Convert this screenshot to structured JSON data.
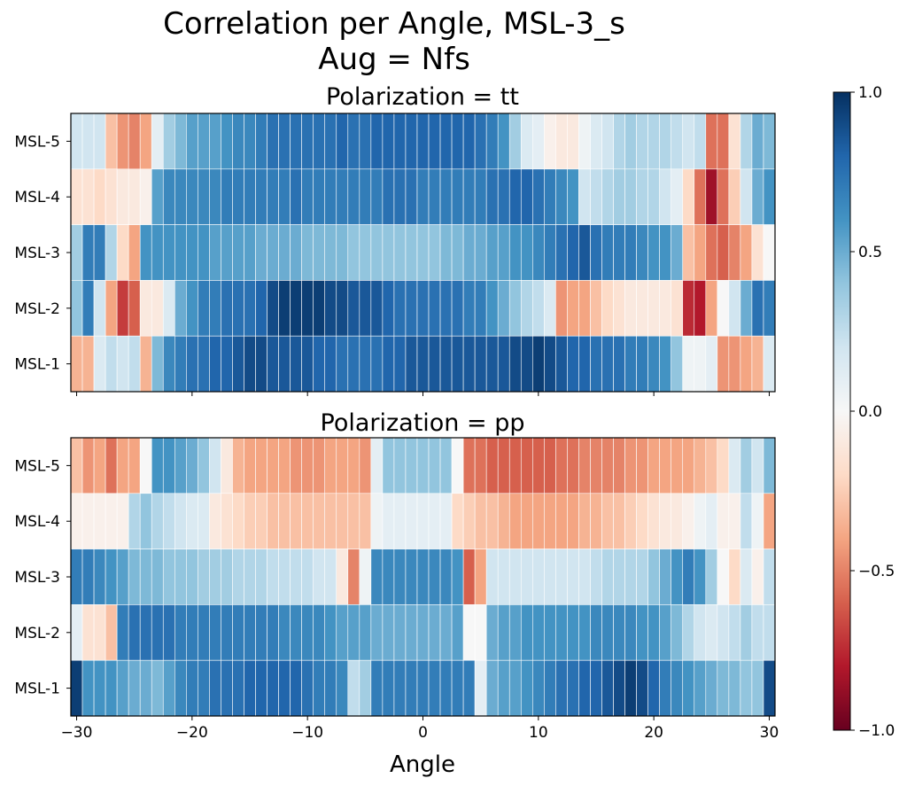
{
  "chart_data": {
    "type": "heatmap",
    "title": "Correlation per Angle, MSL-3_s",
    "subtitle": "Aug = Nfs",
    "xlabel": "Angle",
    "x": [
      -30,
      -29,
      -28,
      -27,
      -26,
      -25,
      -24,
      -23,
      -22,
      -21,
      -20,
      -19,
      -18,
      -17,
      -16,
      -15,
      -14,
      -13,
      -12,
      -11,
      -10,
      -9,
      -8,
      -7,
      -6,
      -5,
      -4,
      -3,
      -2,
      -1,
      0,
      1,
      2,
      3,
      4,
      5,
      6,
      7,
      8,
      9,
      10,
      11,
      12,
      13,
      14,
      15,
      16,
      17,
      18,
      19,
      20,
      21,
      22,
      23,
      24,
      25,
      26,
      27,
      28,
      29,
      30
    ],
    "xlim": [
      -30.5,
      30.5
    ],
    "xticks": [
      -30,
      -20,
      -10,
      0,
      10,
      20,
      30
    ],
    "xtick_labels": [
      "−30",
      "−20",
      "−10",
      "0",
      "10",
      "20",
      "30"
    ],
    "colorscale": "RdBu",
    "vmin": -1.0,
    "vmax": 1.0,
    "colorbar_ticks": [
      1.0,
      0.5,
      0.0,
      -0.5,
      -1.0
    ],
    "colorbar_tick_labels": [
      "1.0",
      "0.5",
      "0.0",
      "−0.5",
      "−1.0"
    ],
    "grid": false,
    "panels": [
      {
        "title": "Polarization = tt",
        "rows": [
          "MSL-5",
          "MSL-4",
          "MSL-3",
          "MSL-2",
          "MSL-1"
        ],
        "values": [
          [
            0.2,
            0.2,
            0.2,
            -0.3,
            -0.45,
            -0.5,
            -0.4,
            0.1,
            0.35,
            0.45,
            0.55,
            0.55,
            0.55,
            0.6,
            0.65,
            0.65,
            0.7,
            0.75,
            0.75,
            0.75,
            0.75,
            0.75,
            0.75,
            0.8,
            0.75,
            0.75,
            0.8,
            0.8,
            0.8,
            0.8,
            0.8,
            0.8,
            0.8,
            0.8,
            0.8,
            0.75,
            0.7,
            0.6,
            0.35,
            0.15,
            0.1,
            -0.05,
            -0.1,
            -0.1,
            0.05,
            0.15,
            0.2,
            0.3,
            0.35,
            0.3,
            0.3,
            0.3,
            0.25,
            0.2,
            0.25,
            -0.55,
            -0.55,
            -0.15,
            0.3,
            0.5,
            0.45
          ],
          [
            -0.15,
            -0.15,
            -0.2,
            -0.15,
            -0.1,
            -0.1,
            -0.05,
            0.55,
            0.65,
            0.65,
            0.65,
            0.65,
            0.65,
            0.7,
            0.7,
            0.7,
            0.7,
            0.7,
            0.7,
            0.75,
            0.7,
            0.7,
            0.7,
            0.7,
            0.7,
            0.7,
            0.7,
            0.75,
            0.75,
            0.75,
            0.7,
            0.7,
            0.7,
            0.7,
            0.7,
            0.7,
            0.75,
            0.75,
            0.8,
            0.8,
            0.75,
            0.7,
            0.65,
            0.6,
            0.2,
            0.25,
            0.3,
            0.35,
            0.35,
            0.3,
            0.3,
            0.2,
            0.1,
            -0.2,
            -0.55,
            -0.85,
            -0.55,
            -0.25,
            0.2,
            0.5,
            0.6
          ],
          [
            0.35,
            0.7,
            0.7,
            0.3,
            -0.2,
            -0.4,
            0.6,
            0.6,
            0.6,
            0.6,
            0.6,
            0.6,
            0.55,
            0.55,
            0.55,
            0.55,
            0.5,
            0.5,
            0.5,
            0.5,
            0.45,
            0.45,
            0.45,
            0.45,
            0.4,
            0.4,
            0.4,
            0.4,
            0.4,
            0.4,
            0.4,
            0.4,
            0.45,
            0.45,
            0.5,
            0.5,
            0.55,
            0.55,
            0.6,
            0.6,
            0.65,
            0.7,
            0.75,
            0.8,
            0.85,
            0.75,
            0.7,
            0.7,
            0.7,
            0.65,
            0.6,
            0.6,
            0.5,
            -0.3,
            -0.4,
            -0.55,
            -0.6,
            -0.5,
            -0.4,
            -0.15,
            0.0
          ],
          [
            0.4,
            0.7,
            0.2,
            -0.4,
            -0.7,
            -0.6,
            -0.1,
            -0.1,
            0.15,
            0.5,
            0.6,
            0.7,
            0.7,
            0.75,
            0.75,
            0.75,
            0.8,
            0.9,
            0.95,
            0.95,
            0.95,
            0.95,
            0.9,
            0.9,
            0.85,
            0.85,
            0.85,
            0.8,
            0.75,
            0.75,
            0.75,
            0.75,
            0.75,
            0.75,
            0.7,
            0.7,
            0.6,
            0.5,
            0.4,
            0.3,
            0.25,
            0.15,
            -0.45,
            -0.4,
            -0.4,
            -0.3,
            -0.2,
            -0.15,
            -0.1,
            -0.1,
            -0.1,
            -0.1,
            -0.15,
            -0.75,
            -0.8,
            -0.4,
            0.0,
            0.2,
            0.5,
            0.75,
            0.7
          ],
          [
            -0.35,
            -0.35,
            0.15,
            0.25,
            0.2,
            0.25,
            -0.35,
            0.45,
            0.65,
            0.7,
            0.75,
            0.75,
            0.8,
            0.8,
            0.85,
            0.9,
            0.9,
            0.85,
            0.85,
            0.85,
            0.85,
            0.8,
            0.8,
            0.75,
            0.75,
            0.75,
            0.75,
            0.8,
            0.8,
            0.85,
            0.85,
            0.85,
            0.85,
            0.85,
            0.85,
            0.85,
            0.85,
            0.85,
            0.9,
            0.9,
            0.95,
            0.9,
            0.85,
            0.8,
            0.8,
            0.75,
            0.75,
            0.75,
            0.7,
            0.7,
            0.65,
            0.6,
            0.4,
            0.05,
            0.05,
            0.1,
            -0.45,
            -0.45,
            -0.4,
            -0.35,
            0.15
          ]
        ]
      },
      {
        "title": "Polarization = pp",
        "rows": [
          "MSL-5",
          "MSL-4",
          "MSL-3",
          "MSL-2",
          "MSL-1"
        ],
        "values": [
          [
            -0.3,
            -0.45,
            -0.4,
            -0.55,
            -0.4,
            -0.4,
            0.0,
            0.6,
            0.6,
            0.55,
            0.5,
            0.4,
            0.2,
            -0.1,
            -0.35,
            -0.4,
            -0.4,
            -0.4,
            -0.4,
            -0.45,
            -0.45,
            -0.45,
            -0.4,
            -0.4,
            -0.4,
            -0.45,
            0.1,
            0.4,
            0.4,
            0.4,
            0.4,
            0.4,
            0.4,
            0.0,
            -0.55,
            -0.55,
            -0.6,
            -0.6,
            -0.6,
            -0.6,
            -0.6,
            -0.6,
            -0.55,
            -0.55,
            -0.5,
            -0.5,
            -0.5,
            -0.5,
            -0.45,
            -0.45,
            -0.4,
            -0.4,
            -0.4,
            -0.4,
            -0.35,
            -0.3,
            -0.2,
            0.15,
            0.35,
            0.2,
            0.45
          ],
          [
            -0.05,
            -0.05,
            -0.05,
            -0.05,
            -0.05,
            0.3,
            0.4,
            0.3,
            0.25,
            0.2,
            0.15,
            0.15,
            -0.1,
            -0.15,
            -0.2,
            -0.25,
            -0.25,
            -0.3,
            -0.3,
            -0.3,
            -0.3,
            -0.3,
            -0.3,
            -0.3,
            -0.3,
            -0.3,
            0.05,
            0.1,
            0.1,
            0.1,
            0.1,
            0.1,
            0.1,
            -0.2,
            -0.25,
            -0.3,
            -0.3,
            -0.35,
            -0.4,
            -0.4,
            -0.4,
            -0.4,
            -0.4,
            -0.4,
            -0.35,
            -0.35,
            -0.3,
            -0.3,
            -0.25,
            -0.2,
            -0.15,
            -0.1,
            -0.1,
            -0.05,
            0.05,
            0.1,
            -0.05,
            -0.05,
            0.25,
            0.05,
            -0.4
          ],
          [
            0.7,
            0.7,
            0.65,
            0.6,
            0.55,
            0.45,
            0.45,
            0.45,
            0.4,
            0.4,
            0.4,
            0.35,
            0.35,
            0.35,
            0.3,
            0.3,
            0.3,
            0.25,
            0.25,
            0.25,
            0.25,
            0.2,
            0.2,
            -0.1,
            -0.5,
            0.05,
            0.65,
            0.65,
            0.65,
            0.65,
            0.65,
            0.65,
            0.65,
            0.6,
            -0.6,
            -0.4,
            0.2,
            0.2,
            0.2,
            0.2,
            0.2,
            0.2,
            0.2,
            0.2,
            0.2,
            0.25,
            0.3,
            0.3,
            0.3,
            0.3,
            0.4,
            0.5,
            0.6,
            0.7,
            0.6,
            0.35,
            0.0,
            -0.2,
            0.15,
            -0.05,
            0.25
          ],
          [
            0.1,
            -0.15,
            -0.15,
            -0.3,
            0.7,
            0.75,
            0.75,
            0.75,
            0.75,
            0.7,
            0.7,
            0.7,
            0.7,
            0.7,
            0.7,
            0.7,
            0.7,
            0.7,
            0.65,
            0.65,
            0.65,
            0.65,
            0.6,
            0.55,
            0.55,
            0.55,
            0.5,
            0.5,
            0.5,
            0.5,
            0.5,
            0.5,
            0.5,
            0.55,
            0.0,
            0.0,
            0.5,
            0.55,
            0.55,
            0.6,
            0.6,
            0.6,
            0.6,
            0.6,
            0.6,
            0.65,
            0.65,
            0.65,
            0.65,
            0.6,
            0.6,
            0.55,
            0.45,
            0.3,
            0.2,
            0.15,
            0.2,
            0.25,
            0.35,
            0.25,
            0.25
          ],
          [
            0.95,
            0.6,
            0.6,
            0.6,
            0.55,
            0.5,
            0.5,
            0.45,
            0.55,
            0.65,
            0.7,
            0.7,
            0.75,
            0.75,
            0.75,
            0.8,
            0.8,
            0.8,
            0.8,
            0.8,
            0.75,
            0.7,
            0.7,
            0.65,
            0.25,
            0.35,
            0.7,
            0.7,
            0.7,
            0.7,
            0.7,
            0.7,
            0.7,
            0.7,
            0.7,
            0.1,
            0.5,
            0.55,
            0.55,
            0.6,
            0.65,
            0.7,
            0.75,
            0.75,
            0.8,
            0.8,
            0.85,
            0.9,
            0.95,
            0.9,
            0.8,
            0.7,
            0.65,
            0.6,
            0.55,
            0.5,
            0.45,
            0.45,
            0.4,
            0.4,
            0.9
          ]
        ]
      }
    ]
  }
}
